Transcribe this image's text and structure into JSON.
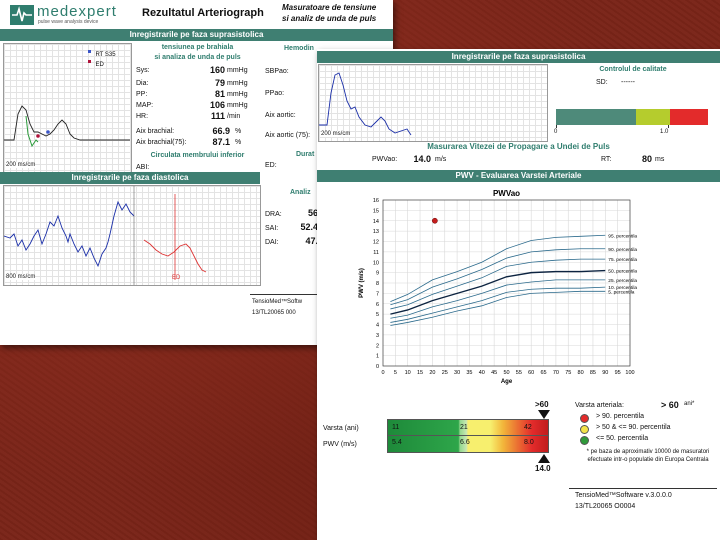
{
  "pageA": {
    "logo": {
      "brand": "medexpert",
      "tagline": "pulse wave analysis device"
    },
    "title": "Rezultatul Arteriograph",
    "subtitle_line1": "Masuratoare de tensiune",
    "subtitle_line2": "si analiz de unda de puls",
    "sect_supra": "Inregistrarile pe faza suprasistolica",
    "legend_rt": "RT S35",
    "legend_ed": "ED",
    "wave_scale_1": "200 ms/cm",
    "tensiune_line1": "tensiunea pe brahiala",
    "tensiune_line2": "si analiza de unda de puls",
    "rows": [
      {
        "label": "Sys:",
        "value": "160",
        "unit": "mmHg"
      },
      {
        "label": "Dia:",
        "value": "79",
        "unit": "mmHg"
      },
      {
        "label": "PP:",
        "value": "81",
        "unit": "mmHg"
      },
      {
        "label": "MAP:",
        "value": "106",
        "unit": "mmHg"
      },
      {
        "label": "HR:",
        "value": "111",
        "unit": "/min"
      }
    ],
    "aix_brachial_label": "Aix brachial:",
    "aix_brachial_value": "66.9",
    "aix_brachial_unit": "%",
    "aix_brachial75_label": "Aix brachial(75):",
    "aix_brachial75_value": "87.1",
    "aix_brachial75_unit": "%",
    "circulatia": "Circulata membrului inferior",
    "abi_label": "ABI:",
    "hemod_header": "Hemodin",
    "sbpao": "SBPao:",
    "ppao": "PPao:",
    "aix_aortic": "Aix aortic:",
    "aix_aortic75": "Aix aortic (75):",
    "durat": "Durat",
    "ed_label": "ED:",
    "sect_dia": "Inregistrarile pe faza diastolica",
    "wave_scale_2": "800 ms/cm",
    "ed_marker": "ED",
    "analiz": "Analiz",
    "dra": "DRA:",
    "dra_value": "56",
    "sai": "SAI:",
    "sai_value": "52.4",
    "dai": "DAI:",
    "dai_value": "47.",
    "footer_software": "TensioMed™Softw",
    "footer_serial": "13/TL20065   000"
  },
  "pageB": {
    "sect_supra": "Inregistrarile pe faza suprasistolica",
    "control_title": "Controlul de calitate",
    "sd_label": "SD:",
    "sd_value": "------",
    "qc_scale": [
      "0",
      "1.0"
    ],
    "qc_colors": [
      "#4e8a7a",
      "#b5cc2d",
      "#e32b2b"
    ],
    "wave_scale": "200 ms/cm",
    "pwv_title": "Masurarea Vitezei de Propagare a Undei de Puls",
    "pwvao_label": "PWVao:",
    "pwvao_value": "14.0",
    "pwvao_unit": "m/s",
    "rt_label": "RT:",
    "rt_value": "80",
    "rt_unit": "ms",
    "eval_title": "PWV - Evaluarea Varstei Arteriale",
    "age_label": "Varsta (ani)",
    "pwv_label": "PWV (m/s)",
    "gt60": ">60",
    "bar_age": [
      "11",
      "21",
      "42"
    ],
    "bar_pwv": [
      "5.4",
      "6.6",
      "8.0"
    ],
    "pwv_marker": "14.0",
    "arterial_age_label": "Varsta arteriala:",
    "arterial_age_value": "> 60",
    "arterial_age_unit": "ani*",
    "legend": [
      {
        "color": "#e32b2b",
        "text": "> 90. percentila"
      },
      {
        "color": "#f2e24a",
        "text": "> 50 & <= 90. percentila"
      },
      {
        "color": "#2f9a3a",
        "text": "<= 50. percentila"
      }
    ],
    "footnote": "* pe baza de aproximativ 10000 de masuratori efectuate intr-o populatie din Europa Centrala",
    "footer_software": "TensioMed™Software   v.3.0.0.0",
    "footer_serial": "13/TL20065   O0004"
  },
  "chart_data": {
    "type": "line",
    "title": "PWVao",
    "xlabel": "Age",
    "ylabel": "PWV (m/s)",
    "xlim": [
      0,
      100
    ],
    "ylim": [
      0,
      16
    ],
    "x_ticks": [
      0,
      5,
      10,
      15,
      20,
      25,
      30,
      35,
      40,
      45,
      50,
      55,
      60,
      65,
      70,
      75,
      80,
      85,
      90,
      95,
      100
    ],
    "y_ticks": [
      0,
      1,
      2,
      3,
      4,
      5,
      6,
      7,
      8,
      9,
      10,
      11,
      12,
      13,
      14,
      15,
      16
    ],
    "grid": true,
    "x": [
      3,
      10,
      20,
      30,
      40,
      50,
      60,
      70,
      80,
      90
    ],
    "series": [
      {
        "name": "95. percentila",
        "values": [
          6.2,
          6.9,
          8.3,
          9.1,
          10.0,
          11.3,
          12.1,
          12.4,
          12.5,
          12.6
        ]
      },
      {
        "name": "90. percentila",
        "values": [
          5.9,
          6.4,
          7.6,
          8.4,
          9.3,
          10.4,
          11.0,
          11.2,
          11.3,
          11.3
        ]
      },
      {
        "name": "75. percentila",
        "values": [
          5.5,
          5.9,
          6.9,
          7.7,
          8.5,
          9.6,
          10.0,
          10.2,
          10.3,
          10.3
        ]
      },
      {
        "name": "50. percentila",
        "values": [
          5.0,
          5.4,
          6.3,
          7.0,
          7.7,
          8.6,
          9.0,
          9.1,
          9.1,
          9.2
        ]
      },
      {
        "name": "25. percentila",
        "values": [
          4.6,
          4.9,
          5.7,
          6.3,
          7.0,
          7.8,
          8.1,
          8.3,
          8.3,
          8.3
        ]
      },
      {
        "name": "10. percentila",
        "values": [
          4.2,
          4.5,
          5.1,
          5.7,
          6.3,
          7.1,
          7.4,
          7.5,
          7.5,
          7.6
        ]
      },
      {
        "name": "5. percentila",
        "values": [
          3.9,
          4.2,
          4.7,
          5.3,
          5.8,
          6.6,
          7.0,
          7.1,
          7.2,
          7.2
        ]
      }
    ],
    "patient_point": {
      "x": 21,
      "y": 14.0
    }
  }
}
